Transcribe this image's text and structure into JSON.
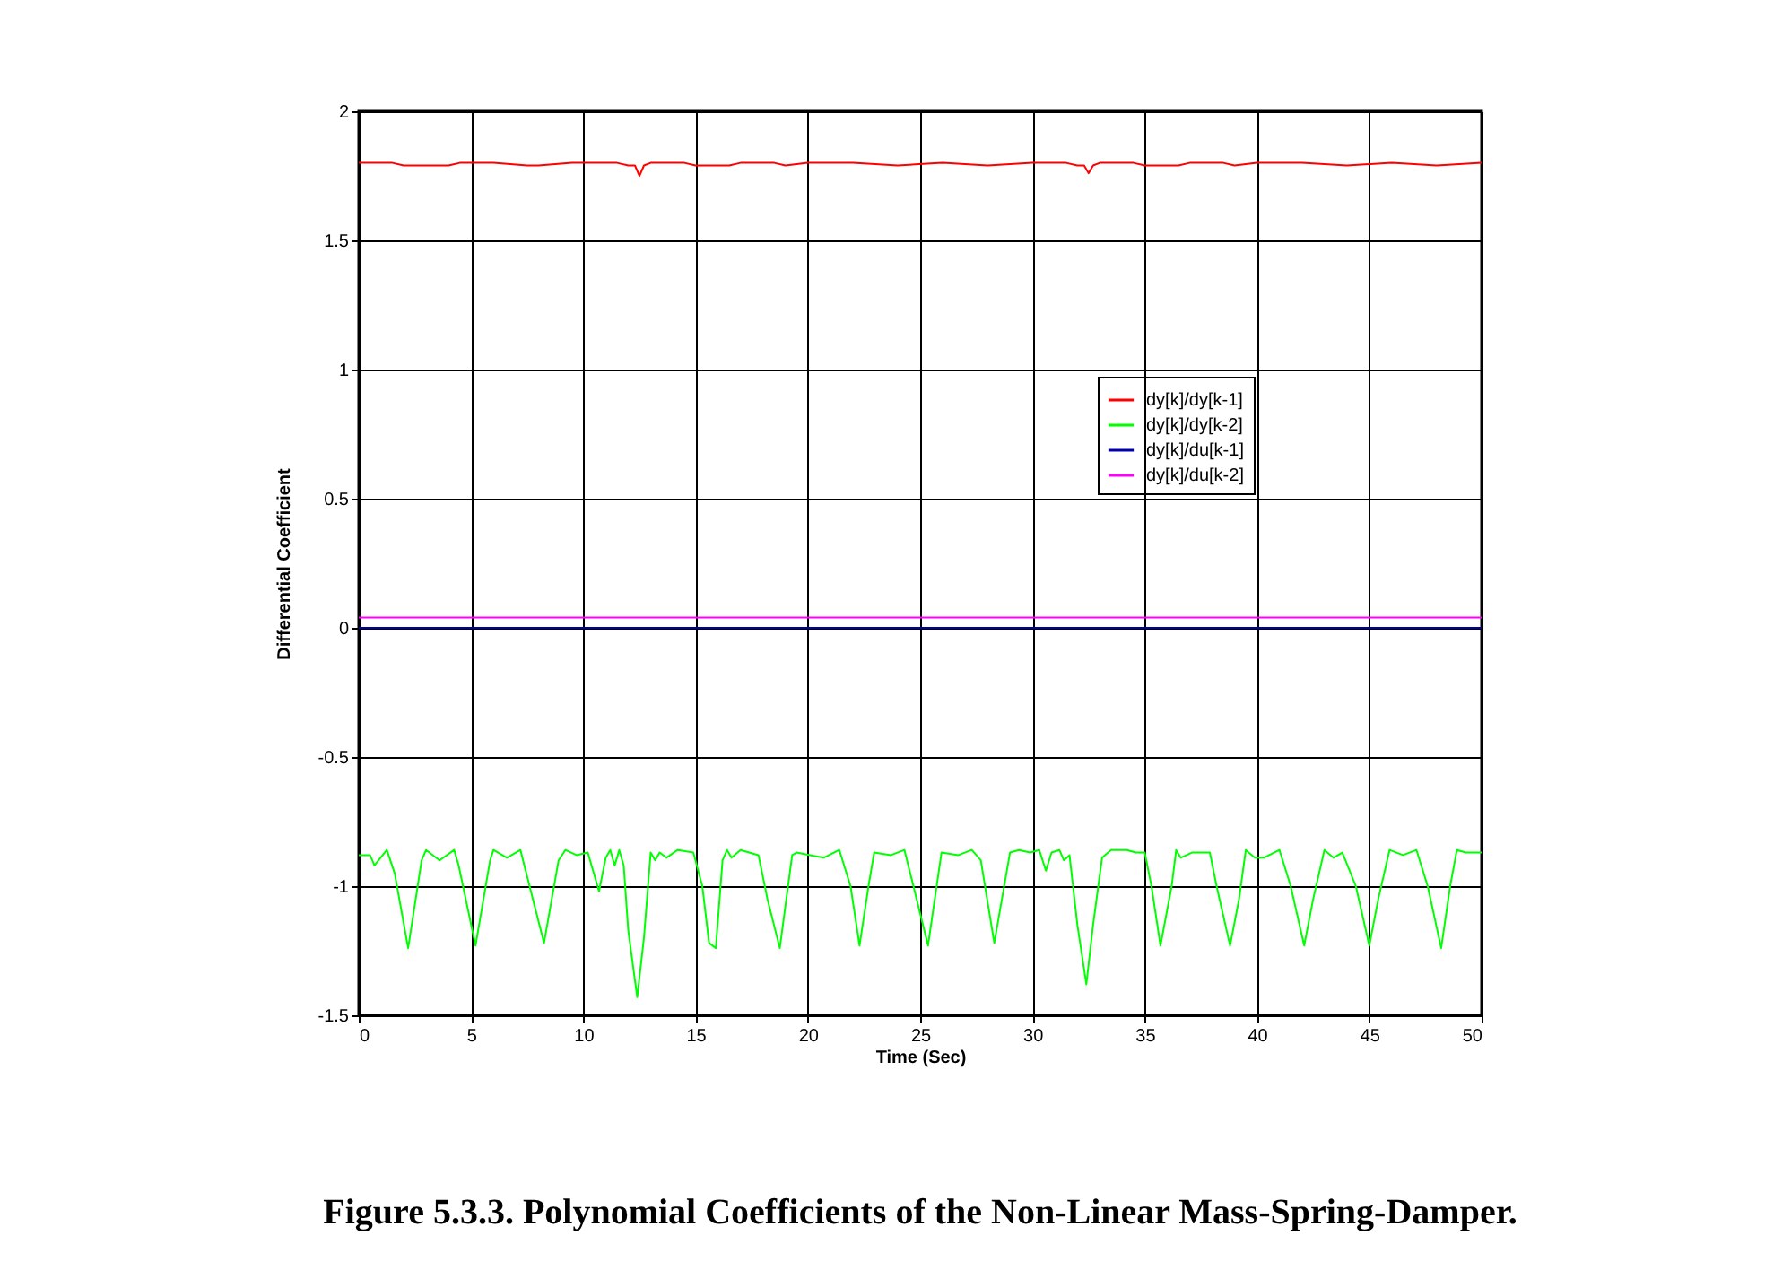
{
  "chart_data": {
    "type": "line",
    "title": "Figure 5.3.3. Polynomial Coefficients of the  Non-Linear Mass-Spring-Damper.",
    "xlabel": "Time (Sec)",
    "ylabel": "Differential Coefficient",
    "xlim": [
      0,
      50
    ],
    "xticks": [
      0,
      5,
      10,
      15,
      20,
      25,
      30,
      35,
      40,
      45,
      50
    ],
    "ylim": [
      -1.5,
      2
    ],
    "yticks": [
      -1.5,
      -1,
      -0.5,
      0,
      0.5,
      1,
      1.5,
      2
    ],
    "grid": true,
    "legend": "right",
    "line_style": "solid",
    "series": [
      {
        "name": "dy[k]/dy[k-1]",
        "color": "#ff0000",
        "x": [
          0,
          1.5,
          2,
          4,
          4.5,
          6,
          7.5,
          8,
          9.5,
          11.5,
          12,
          12.3,
          12.5,
          12.7,
          13,
          14.5,
          15,
          16.5,
          17,
          18.5,
          19,
          20,
          22,
          24,
          26,
          28,
          30,
          31.5,
          32,
          32.3,
          32.5,
          32.7,
          33,
          34.5,
          35,
          36.5,
          37,
          38.5,
          39,
          40,
          42,
          44,
          46,
          48,
          50
        ],
        "values": [
          1.8,
          1.8,
          1.79,
          1.79,
          1.8,
          1.8,
          1.79,
          1.79,
          1.8,
          1.8,
          1.79,
          1.79,
          1.75,
          1.79,
          1.8,
          1.8,
          1.79,
          1.79,
          1.8,
          1.8,
          1.79,
          1.8,
          1.8,
          1.79,
          1.8,
          1.79,
          1.8,
          1.8,
          1.79,
          1.79,
          1.76,
          1.79,
          1.8,
          1.8,
          1.79,
          1.79,
          1.8,
          1.8,
          1.79,
          1.8,
          1.8,
          1.79,
          1.8,
          1.79,
          1.8
        ]
      },
      {
        "name": "dy[k]/dy[k-2]",
        "color": "#00ff00",
        "x": [
          0,
          0.5,
          0.7,
          1.25,
          1.6,
          2.2,
          2.8,
          3.0,
          3.6,
          4.25,
          4.45,
          5.2,
          5.85,
          6.0,
          6.6,
          7.2,
          8.25,
          8.9,
          9.2,
          9.7,
          10.2,
          10.7,
          11.0,
          11.2,
          11.4,
          11.6,
          11.8,
          12.0,
          12.4,
          12.7,
          13.0,
          13.2,
          13.4,
          13.7,
          14.2,
          14.9,
          15.3,
          15.6,
          15.9,
          16.2,
          16.4,
          16.6,
          17.0,
          17.8,
          18.2,
          18.75,
          19.3,
          19.5,
          20.1,
          20.7,
          21.4,
          21.9,
          22.3,
          22.7,
          22.95,
          23.7,
          24.3,
          24.7,
          25.35,
          25.95,
          26.7,
          27.3,
          27.7,
          28.3,
          29.0,
          29.4,
          29.9,
          30.3,
          30.6,
          30.85,
          31.2,
          31.4,
          31.65,
          32.0,
          32.4,
          32.7,
          33.1,
          33.5,
          34.2,
          34.6,
          35.0,
          35.3,
          35.7,
          36.2,
          36.4,
          36.6,
          37.1,
          37.9,
          38.2,
          38.8,
          39.2,
          39.5,
          39.9,
          40.3,
          41.0,
          41.5,
          42.1,
          42.5,
          43.0,
          43.4,
          43.8,
          44.4,
          45.0,
          45.4,
          45.9,
          46.5,
          47.1,
          47.6,
          48.2,
          48.6,
          48.9,
          49.3,
          49.7,
          50
        ],
        "values": [
          -0.88,
          -0.88,
          -0.92,
          -0.86,
          -0.95,
          -1.24,
          -0.9,
          -0.86,
          -0.9,
          -0.86,
          -0.92,
          -1.23,
          -0.9,
          -0.86,
          -0.89,
          -0.86,
          -1.22,
          -0.9,
          -0.86,
          -0.88,
          -0.87,
          -1.02,
          -0.89,
          -0.86,
          -0.92,
          -0.86,
          -0.92,
          -1.17,
          -1.43,
          -1.2,
          -0.87,
          -0.9,
          -0.87,
          -0.89,
          -0.86,
          -0.87,
          -1.0,
          -1.22,
          -1.24,
          -0.9,
          -0.86,
          -0.89,
          -0.86,
          -0.88,
          -1.05,
          -1.24,
          -0.88,
          -0.87,
          -0.88,
          -0.89,
          -0.86,
          -1.0,
          -1.23,
          -1.0,
          -0.87,
          -0.88,
          -0.86,
          -1.0,
          -1.23,
          -0.87,
          -0.88,
          -0.86,
          -0.9,
          -1.22,
          -0.87,
          -0.86,
          -0.87,
          -0.86,
          -0.94,
          -0.87,
          -0.86,
          -0.9,
          -0.88,
          -1.15,
          -1.38,
          -1.15,
          -0.89,
          -0.86,
          -0.86,
          -0.87,
          -0.87,
          -1.0,
          -1.23,
          -1.0,
          -0.86,
          -0.89,
          -0.87,
          -0.87,
          -1.0,
          -1.23,
          -1.05,
          -0.86,
          -0.89,
          -0.89,
          -0.86,
          -1.0,
          -1.23,
          -1.05,
          -0.86,
          -0.89,
          -0.87,
          -1.0,
          -1.23,
          -1.05,
          -0.86,
          -0.88,
          -0.86,
          -1.0,
          -1.24,
          -1.0,
          -0.86,
          -0.87,
          -0.87,
          -0.87
        ]
      },
      {
        "name": "dy[k]/du[k-1]",
        "color": "#0000aa",
        "x": [
          0,
          50
        ],
        "values": [
          0,
          0
        ]
      },
      {
        "name": "dy[k]/du[k-2]",
        "color": "#ff00ff",
        "x": [
          0,
          50
        ],
        "values": [
          0.04,
          0.04
        ]
      }
    ]
  }
}
